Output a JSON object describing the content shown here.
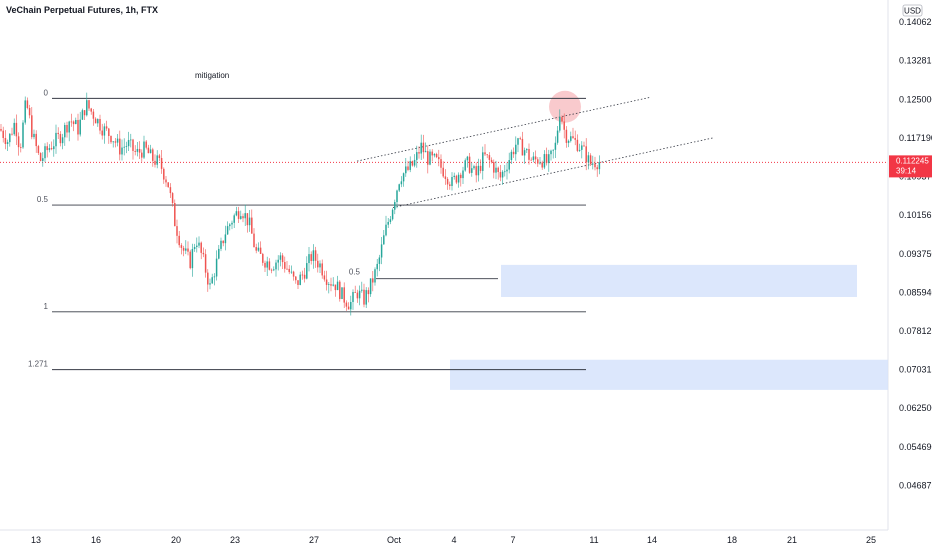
{
  "header": {
    "title": "VeChain Perpetual Futures, 1h, FTX"
  },
  "chart_data": {
    "type": "candlestick",
    "title": "VeChain Perpetual Futures, 1h, FTX",
    "currency": "USD",
    "y_ticks": [
      "0.140625",
      "0.132815",
      "0.125000",
      "0.117190",
      "0.109375",
      "0.101565",
      "0.093750",
      "0.085940",
      "0.078125",
      "0.070315",
      "0.062500",
      "0.054690",
      "0.046875"
    ],
    "ylim": [
      0.0425,
      0.1445
    ],
    "x_ticks": [
      "13",
      "16",
      "20",
      "23",
      "27",
      "Oct",
      "4",
      "7",
      "11",
      "14",
      "18",
      "21",
      "25"
    ],
    "xlim": [
      0,
      932
    ],
    "current_price": {
      "value": "0.112245",
      "countdown": "39:14",
      "numeric": 0.112245
    },
    "fib_levels": [
      {
        "label": "0",
        "value": 0.1252
      },
      {
        "label": "0.5",
        "value": 0.1036
      },
      {
        "label": "1",
        "value": 0.082
      },
      {
        "label": "1.271",
        "value": 0.0703
      }
    ],
    "secondary_fib": {
      "label": "0.5",
      "value": 0.0887
    },
    "annotation": "mitigation",
    "zones": [
      {
        "name": "upper-demand-zone",
        "top": 0.0915,
        "bottom": 0.085
      },
      {
        "name": "lower-demand-zone",
        "top": 0.0723,
        "bottom": 0.0662
      }
    ],
    "channel": {
      "upper": [
        [
          357,
          0.1125
        ],
        [
          650,
          0.1254
        ]
      ],
      "lower": [
        [
          393,
          0.1031
        ],
        [
          713,
          0.1172
        ]
      ]
    },
    "highlight_circle": {
      "x": 565,
      "value": 0.1235
    },
    "price_path": [
      [
        0,
        0.119
      ],
      [
        8,
        0.1165
      ],
      [
        15,
        0.1205
      ],
      [
        20,
        0.115
      ],
      [
        26,
        0.1245
      ],
      [
        33,
        0.1175
      ],
      [
        40,
        0.1125
      ],
      [
        48,
        0.115
      ],
      [
        55,
        0.1165
      ],
      [
        62,
        0.118
      ],
      [
        70,
        0.121
      ],
      [
        78,
        0.119
      ],
      [
        86,
        0.124
      ],
      [
        95,
        0.1215
      ],
      [
        103,
        0.119
      ],
      [
        112,
        0.1175
      ],
      [
        120,
        0.115
      ],
      [
        128,
        0.116
      ],
      [
        136,
        0.114
      ],
      [
        145,
        0.115
      ],
      [
        152,
        0.113
      ],
      [
        160,
        0.112
      ],
      [
        168,
        0.108
      ],
      [
        175,
        0.1
      ],
      [
        182,
        0.095
      ],
      [
        190,
        0.092
      ],
      [
        196,
        0.097
      ],
      [
        203,
        0.0925
      ],
      [
        210,
        0.087
      ],
      [
        218,
        0.093
      ],
      [
        225,
        0.098
      ],
      [
        233,
        0.101
      ],
      [
        241,
        0.103
      ],
      [
        249,
        0.1
      ],
      [
        256,
        0.094
      ],
      [
        264,
        0.0925
      ],
      [
        272,
        0.0915
      ],
      [
        280,
        0.093
      ],
      [
        288,
        0.0905
      ],
      [
        296,
        0.0875
      ],
      [
        304,
        0.09
      ],
      [
        312,
        0.0935
      ],
      [
        320,
        0.0915
      ],
      [
        328,
        0.0885
      ],
      [
        336,
        0.0875
      ],
      [
        343,
        0.085
      ],
      [
        350,
        0.0835
      ],
      [
        357,
        0.086
      ],
      [
        364,
        0.0845
      ],
      [
        371,
        0.0875
      ],
      [
        378,
        0.0915
      ],
      [
        385,
        0.098
      ],
      [
        392,
        0.103
      ],
      [
        400,
        0.1095
      ],
      [
        407,
        0.1105
      ],
      [
        414,
        0.112
      ],
      [
        421,
        0.1155
      ],
      [
        428,
        0.113
      ],
      [
        436,
        0.1125
      ],
      [
        444,
        0.1105
      ],
      [
        452,
        0.108
      ],
      [
        460,
        0.1105
      ],
      [
        468,
        0.112
      ],
      [
        476,
        0.1095
      ],
      [
        484,
        0.1135
      ],
      [
        492,
        0.112
      ],
      [
        500,
        0.109
      ],
      [
        508,
        0.1125
      ],
      [
        516,
        0.116
      ],
      [
        524,
        0.115
      ],
      [
        532,
        0.1125
      ],
      [
        540,
        0.113
      ],
      [
        548,
        0.112
      ],
      [
        555,
        0.115
      ],
      [
        560,
        0.123
      ],
      [
        565,
        0.118
      ],
      [
        571,
        0.117
      ],
      [
        578,
        0.116
      ],
      [
        585,
        0.114
      ],
      [
        590,
        0.112
      ],
      [
        596,
        0.1125
      ],
      [
        600,
        0.1122
      ]
    ]
  }
}
